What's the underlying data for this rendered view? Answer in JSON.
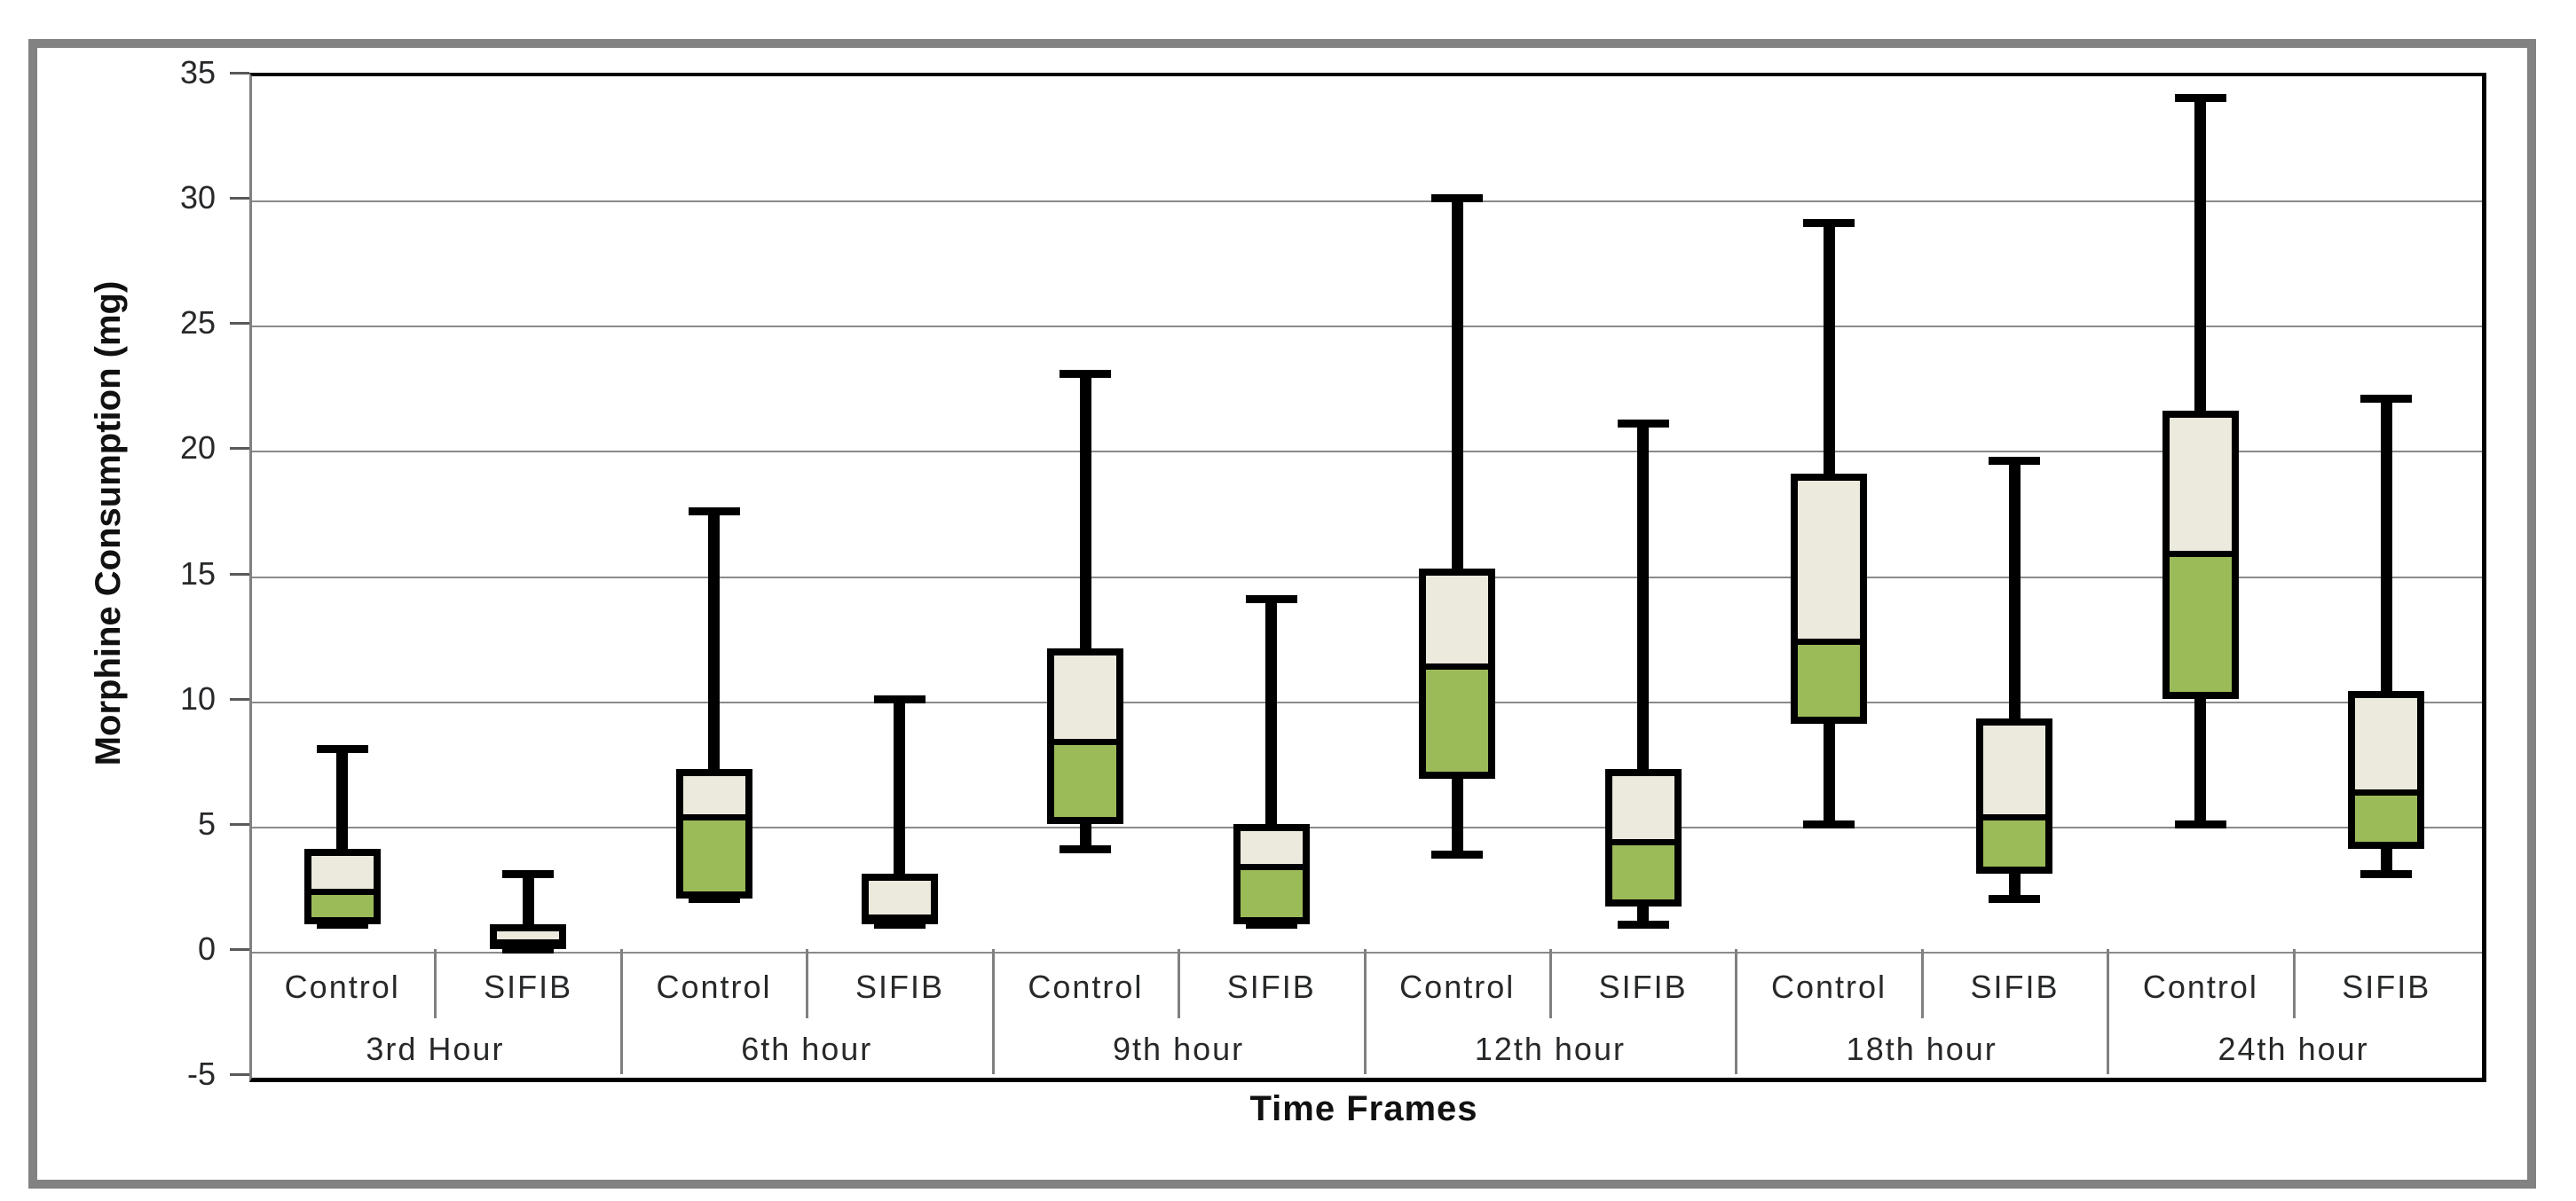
{
  "chart_data": {
    "type": "boxplot",
    "title": "",
    "ylabel": "Morphine Consumption (mg)",
    "xlabel": "Time Frames",
    "ylim": [
      -5,
      35
    ],
    "ytick_step": 5,
    "yticks": [
      "35",
      "30",
      "25",
      "20",
      "15",
      "10",
      "5",
      "0",
      "-5"
    ],
    "grid": "horizontal",
    "legend_position": "none",
    "series_per_group": [
      "Control",
      "SIFIB"
    ],
    "groups": [
      {
        "label": "3rd Hour",
        "boxes": [
          {
            "series": "Control",
            "min": 1,
            "q1": 1,
            "median": 2,
            "q3": 4,
            "max": 8
          },
          {
            "series": "SIFIB",
            "min": 0,
            "q1": 0,
            "median": 0,
            "q3": 1,
            "max": 3
          }
        ]
      },
      {
        "label": "6th hour",
        "boxes": [
          {
            "series": "Control",
            "min": 2,
            "q1": 2,
            "median": 5,
            "q3": 7.2,
            "max": 17.5
          },
          {
            "series": "SIFIB",
            "min": 1,
            "q1": 1,
            "median": 1,
            "q3": 3,
            "max": 10
          }
        ]
      },
      {
        "label": "9th hour",
        "boxes": [
          {
            "series": "Control",
            "min": 4,
            "q1": 5,
            "median": 8,
            "q3": 12,
            "max": 23
          },
          {
            "series": "SIFIB",
            "min": 1,
            "q1": 1,
            "median": 3,
            "q3": 5,
            "max": 14
          }
        ]
      },
      {
        "label": "12th hour",
        "boxes": [
          {
            "series": "Control",
            "min": 3.8,
            "q1": 6.8,
            "median": 11,
            "q3": 15.2,
            "max": 30
          },
          {
            "series": "SIFIB",
            "min": 1,
            "q1": 1.7,
            "median": 4,
            "q3": 7.2,
            "max": 21
          }
        ]
      },
      {
        "label": "18th hour",
        "boxes": [
          {
            "series": "Control",
            "min": 5,
            "q1": 9,
            "median": 12,
            "q3": 19,
            "max": 29
          },
          {
            "series": "SIFIB",
            "min": 2,
            "q1": 3,
            "median": 5,
            "q3": 9.2,
            "max": 19.5
          }
        ]
      },
      {
        "label": "24th hour",
        "boxes": [
          {
            "series": "Control",
            "min": 5,
            "q1": 10,
            "median": 15.5,
            "q3": 21.5,
            "max": 34
          },
          {
            "series": "SIFIB",
            "min": 3,
            "q1": 4,
            "median": 6,
            "q3": 10.3,
            "max": 22
          }
        ]
      }
    ],
    "colors": {
      "box_fill_upper": "#ECE9DD",
      "box_fill_lower": "#9BBB59",
      "box_border": "#000000",
      "whisker": "#000000",
      "gridline": "#8A8A8A",
      "axis_line": "#808080",
      "text": "#26282A",
      "outer_frame": "#828282",
      "background": "#FFFFFF"
    }
  }
}
